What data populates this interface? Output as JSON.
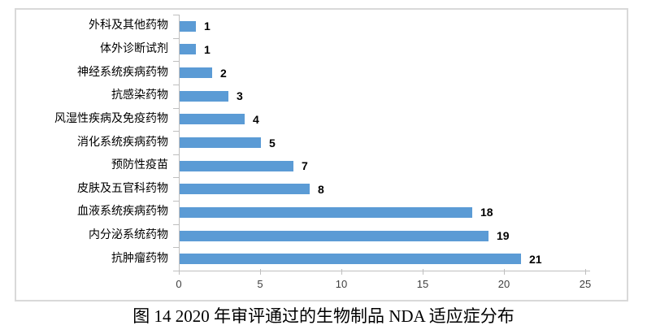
{
  "figure": {
    "caption": "图 14  2020 年审评通过的生物制品 NDA 适应症分布"
  },
  "chart_data": {
    "type": "bar",
    "orientation": "horizontal",
    "title": "",
    "categories": [
      "外科及其他药物",
      "体外诊断试剂",
      "神经系统疾病药物",
      "抗感染药物",
      "风湿性疾病及免疫药物",
      "消化系统疾病药物",
      "预防性疫苗",
      "皮肤及五官科药物",
      "血液系统疾病药物",
      "内分泌系统药物",
      "抗肿瘤药物"
    ],
    "values": [
      1,
      1,
      2,
      3,
      4,
      5,
      7,
      8,
      18,
      19,
      21
    ],
    "data_labels": [
      "1",
      "1",
      "2",
      "3",
      "4",
      "5",
      "7",
      "8",
      "18",
      "19",
      "21"
    ],
    "xlabel": "",
    "ylabel": "",
    "xlim": [
      0,
      25
    ],
    "x_ticks": [
      0,
      5,
      10,
      15,
      20,
      25
    ],
    "grid": false,
    "legend": "none",
    "bar_color": "#5b9bd5",
    "axis_color": "#bfbfbf",
    "frame_border_color": "#d9d9d9"
  }
}
